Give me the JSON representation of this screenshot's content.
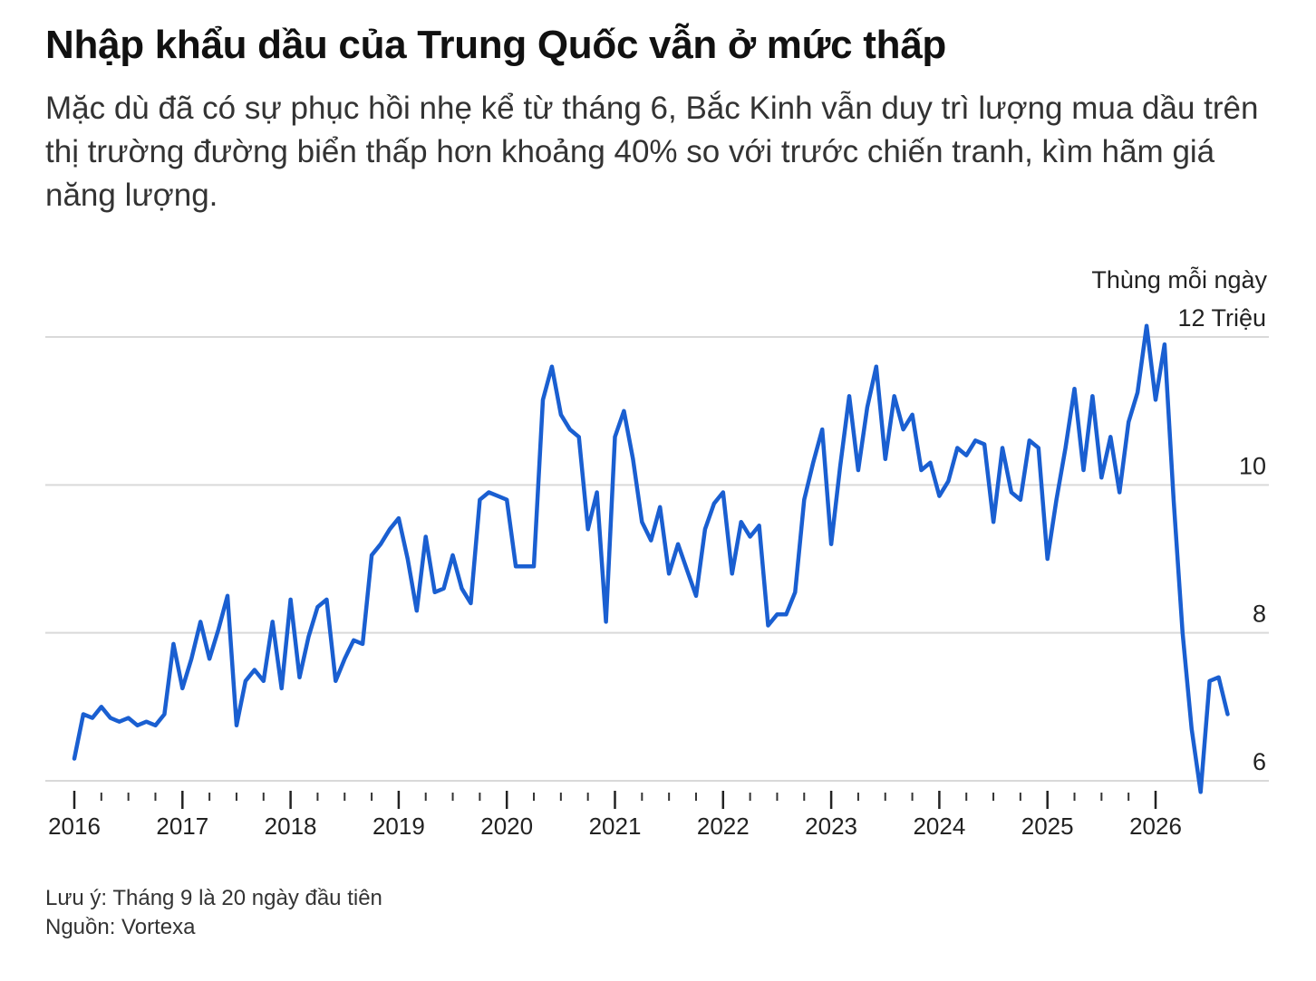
{
  "header": {
    "title": "Nhập khẩu dầu của Trung Quốc vẫn ở mức thấp",
    "subtitle": "Mặc dù đã có sự phục hồi nhẹ kể từ tháng 6, Bắc Kinh vẫn duy trì lượng mua dầu trên thị trường đường biển thấp hơn khoảng 40% so với trước chiến tranh, kìm hãm giá năng lượng."
  },
  "footer": {
    "note": "Lưu ý: Tháng 9 là 20 ngày đầu tiên",
    "source": "Nguồn: Vortexa"
  },
  "chart_data": {
    "type": "line",
    "title": "Nhập khẩu dầu của Trung Quốc vẫn ở mức thấp",
    "ylabel": "Thùng mỗi ngày",
    "ylim": [
      6,
      12
    ],
    "y_ticks": [
      {
        "value": 12,
        "label": "12 Triệu"
      },
      {
        "value": 10,
        "label": "10"
      },
      {
        "value": 8,
        "label": "8"
      },
      {
        "value": 6,
        "label": "6"
      }
    ],
    "x_ticks": [
      "2016",
      "2017",
      "2018",
      "2019",
      "2020",
      "2021",
      "2022",
      "2023",
      "2024",
      "2025",
      "2026"
    ],
    "grid": "horizontal",
    "line_color": "#1a5fd1",
    "series": [
      {
        "values": [
          6.3,
          6.9,
          6.85,
          7.0,
          6.85,
          6.8,
          6.85,
          6.75,
          6.8,
          6.75,
          6.9,
          7.85,
          7.25,
          7.65,
          8.15,
          7.65,
          8.05,
          8.5,
          6.75,
          7.35,
          7.5,
          7.35,
          8.15,
          7.25,
          8.45,
          7.4,
          7.95,
          8.35,
          8.45,
          7.35,
          7.65,
          7.9,
          7.85,
          9.05,
          9.2,
          9.4,
          9.55,
          9.0,
          8.3,
          9.3,
          8.55,
          8.6,
          9.05,
          8.6,
          8.4,
          9.8,
          9.9,
          9.85,
          9.8,
          8.9,
          8.9,
          8.9,
          11.15,
          11.6,
          10.95,
          10.75,
          10.65,
          9.4,
          9.9,
          8.15,
          10.65,
          11.0,
          10.35,
          9.5,
          9.25,
          9.7,
          8.8,
          9.2,
          8.85,
          8.5,
          9.4,
          9.75,
          9.9,
          8.8,
          9.5,
          9.3,
          9.45,
          8.1,
          8.25,
          8.25,
          8.55,
          9.8,
          10.3,
          10.75,
          9.2,
          10.25,
          11.2,
          10.2,
          11.05,
          11.6,
          10.35,
          11.2,
          10.75,
          10.95,
          10.2,
          10.3,
          9.85,
          10.05,
          10.5,
          10.4,
          10.6,
          10.55,
          9.5,
          10.5,
          9.9,
          9.8,
          10.6,
          10.5,
          9.0,
          9.8,
          10.5,
          11.3,
          10.2,
          11.2,
          10.1,
          10.65,
          9.9,
          10.85,
          11.25,
          12.15,
          11.15,
          11.9,
          9.8,
          8.0,
          6.7,
          5.85,
          7.35,
          7.4,
          6.9
        ]
      }
    ]
  }
}
